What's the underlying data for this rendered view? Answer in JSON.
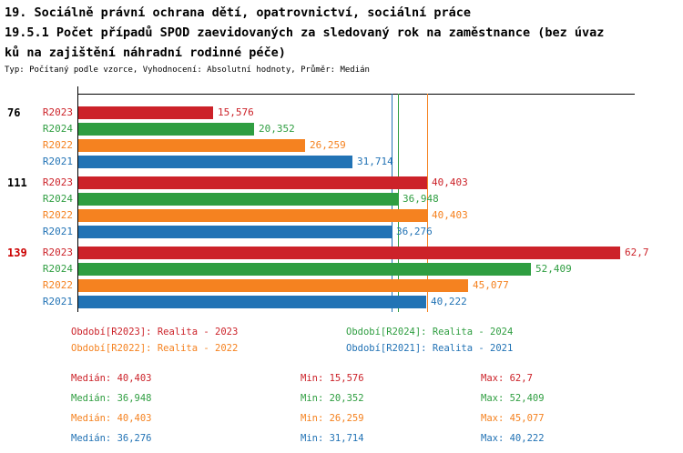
{
  "title": {
    "line1": "19. Sociálně právní ochrana dětí, opatrovnictví, sociální práce",
    "line2": "19.5.1 Počet případů SPOD zaevidovaných za sledovaný rok na zaměstnance (bez úvaz",
    "line3": "ků na zajištění náhradní rodinné péče)",
    "subtitle": "Typ: Počítaný podle vzorce, Vyhodnocení: Absolutní hodnoty, Průměr: Medián"
  },
  "colors": {
    "R2023": "#cc2229",
    "R2024": "#2f9e41",
    "R2022": "#f58220",
    "R2021": "#2273b5",
    "highlight_red": "#cc0000",
    "axis": "#000000"
  },
  "chart_data": {
    "type": "bar",
    "orientation": "horizontal",
    "x_min": 0,
    "x_max": 62.7,
    "grid": "off",
    "series_order": [
      "R2023",
      "R2024",
      "R2022",
      "R2021"
    ],
    "groups": [
      {
        "label": "76",
        "label_color_key": "axis",
        "bars": [
          {
            "series": "R2023",
            "value": 15.576,
            "value_label": "15,576"
          },
          {
            "series": "R2024",
            "value": 20.352,
            "value_label": "20,352"
          },
          {
            "series": "R2022",
            "value": 26.259,
            "value_label": "26,259"
          },
          {
            "series": "R2021",
            "value": 31.714,
            "value_label": "31,714"
          }
        ]
      },
      {
        "label": "111",
        "label_color_key": "axis",
        "bars": [
          {
            "series": "R2023",
            "value": 40.403,
            "value_label": "40,403"
          },
          {
            "series": "R2024",
            "value": 36.948,
            "value_label": "36,948"
          },
          {
            "series": "R2022",
            "value": 40.403,
            "value_label": "40,403"
          },
          {
            "series": "R2021",
            "value": 36.276,
            "value_label": "36,276"
          }
        ]
      },
      {
        "label": "139",
        "label_color_key": "highlight_red",
        "bars": [
          {
            "series": "R2023",
            "value": 62.7,
            "value_label": "62,7"
          },
          {
            "series": "R2024",
            "value": 52.409,
            "value_label": "52,409"
          },
          {
            "series": "R2022",
            "value": 45.077,
            "value_label": "45,077"
          },
          {
            "series": "R2021",
            "value": 40.222,
            "value_label": "40,222"
          }
        ]
      }
    ],
    "reference_lines": [
      {
        "series": "R2023",
        "value": 40.403
      },
      {
        "series": "R2024",
        "value": 36.948
      },
      {
        "series": "R2022",
        "value": 40.403
      },
      {
        "series": "R2021",
        "value": 36.276
      }
    ]
  },
  "legend": {
    "items": [
      {
        "series": "R2023",
        "label": "Období[R2023]: Realita - 2023"
      },
      {
        "series": "R2024",
        "label": "Období[R2024]: Realita - 2024"
      },
      {
        "series": "R2022",
        "label": "Období[R2022]: Realita - 2022"
      },
      {
        "series": "R2021",
        "label": "Období[R2021]: Realita - 2021"
      }
    ]
  },
  "stats": {
    "rows": [
      {
        "series": "R2023",
        "median": "Medián: 40,403",
        "min": "Min: 15,576",
        "max": "Max: 62,7"
      },
      {
        "series": "R2024",
        "median": "Medián: 36,948",
        "min": "Min: 20,352",
        "max": "Max: 52,409"
      },
      {
        "series": "R2022",
        "median": "Medián: 40,403",
        "min": "Min: 26,259",
        "max": "Max: 45,077"
      },
      {
        "series": "R2021",
        "median": "Medián: 36,276",
        "min": "Min: 31,714",
        "max": "Max: 40,222"
      }
    ]
  }
}
